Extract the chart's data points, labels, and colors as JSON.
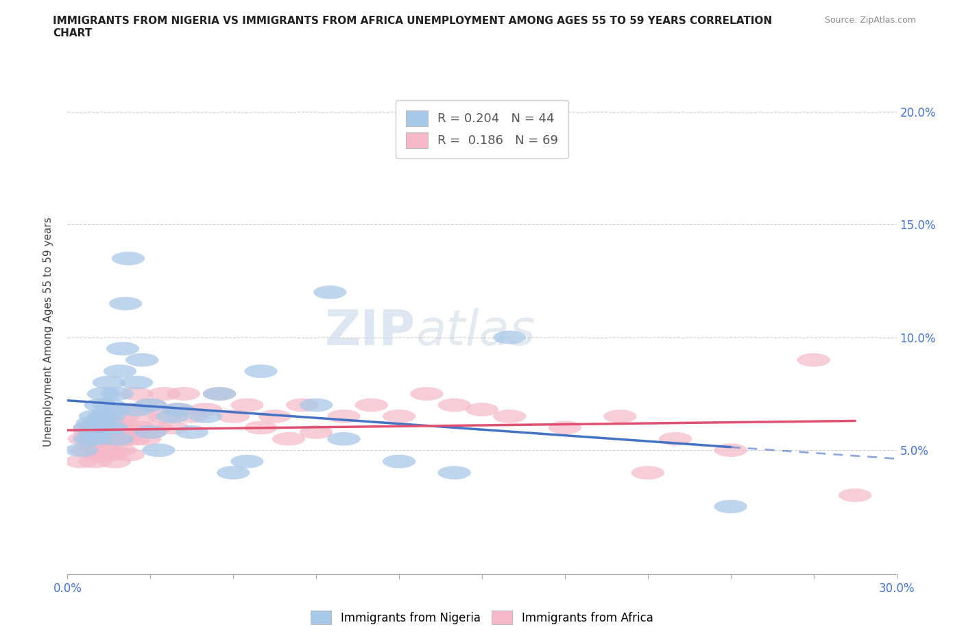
{
  "title": "IMMIGRANTS FROM NIGERIA VS IMMIGRANTS FROM AFRICA UNEMPLOYMENT AMONG AGES 55 TO 59 YEARS CORRELATION\nCHART",
  "source_text": "Source: ZipAtlas.com",
  "ylabel": "Unemployment Among Ages 55 to 59 years",
  "xlim": [
    0.0,
    0.3
  ],
  "ylim": [
    -0.005,
    0.21
  ],
  "xticks": [
    0.0,
    0.03,
    0.06,
    0.09,
    0.12,
    0.15,
    0.18,
    0.21,
    0.24,
    0.27,
    0.3
  ],
  "yticks": [
    0.0,
    0.05,
    0.1,
    0.15,
    0.2
  ],
  "nigeria_color": "#a8c8e8",
  "africa_color": "#f4b8c8",
  "nigeria_line_color": "#4472c4",
  "africa_line_color": "#e05070",
  "nigeria_label": "Immigrants from Nigeria",
  "africa_label": "Immigrants from Africa",
  "r_nigeria": 0.204,
  "n_nigeria": 44,
  "r_africa": 0.186,
  "n_africa": 69,
  "watermark": "ZIPatlas",
  "nigeria_x": [
    0.005,
    0.008,
    0.008,
    0.009,
    0.01,
    0.01,
    0.01,
    0.012,
    0.012,
    0.013,
    0.013,
    0.014,
    0.015,
    0.015,
    0.015,
    0.016,
    0.017,
    0.018,
    0.018,
    0.019,
    0.02,
    0.021,
    0.022,
    0.025,
    0.025,
    0.027,
    0.03,
    0.03,
    0.033,
    0.038,
    0.04,
    0.045,
    0.05,
    0.055,
    0.06,
    0.065,
    0.07,
    0.09,
    0.095,
    0.1,
    0.12,
    0.14,
    0.16,
    0.24
  ],
  "nigeria_y": [
    0.05,
    0.055,
    0.06,
    0.062,
    0.055,
    0.058,
    0.065,
    0.06,
    0.07,
    0.065,
    0.075,
    0.06,
    0.065,
    0.07,
    0.08,
    0.06,
    0.068,
    0.055,
    0.075,
    0.085,
    0.095,
    0.115,
    0.135,
    0.068,
    0.08,
    0.09,
    0.058,
    0.07,
    0.05,
    0.065,
    0.068,
    0.058,
    0.065,
    0.075,
    0.04,
    0.045,
    0.085,
    0.07,
    0.12,
    0.055,
    0.045,
    0.04,
    0.1,
    0.025
  ],
  "africa_x": [
    0.005,
    0.006,
    0.007,
    0.008,
    0.008,
    0.009,
    0.01,
    0.01,
    0.01,
    0.011,
    0.012,
    0.012,
    0.012,
    0.013,
    0.013,
    0.014,
    0.015,
    0.015,
    0.015,
    0.016,
    0.016,
    0.017,
    0.018,
    0.018,
    0.019,
    0.02,
    0.02,
    0.021,
    0.022,
    0.022,
    0.023,
    0.024,
    0.025,
    0.025,
    0.026,
    0.027,
    0.028,
    0.03,
    0.03,
    0.032,
    0.035,
    0.035,
    0.038,
    0.04,
    0.042,
    0.045,
    0.05,
    0.055,
    0.06,
    0.065,
    0.07,
    0.075,
    0.08,
    0.085,
    0.09,
    0.1,
    0.11,
    0.12,
    0.13,
    0.14,
    0.15,
    0.16,
    0.18,
    0.2,
    0.21,
    0.22,
    0.24,
    0.27,
    0.285
  ],
  "africa_y": [
    0.045,
    0.055,
    0.05,
    0.058,
    0.06,
    0.055,
    0.045,
    0.052,
    0.06,
    0.055,
    0.048,
    0.055,
    0.062,
    0.05,
    0.058,
    0.055,
    0.048,
    0.055,
    0.062,
    0.05,
    0.058,
    0.045,
    0.055,
    0.062,
    0.05,
    0.058,
    0.065,
    0.055,
    0.048,
    0.06,
    0.068,
    0.055,
    0.058,
    0.075,
    0.06,
    0.065,
    0.055,
    0.058,
    0.07,
    0.06,
    0.065,
    0.075,
    0.06,
    0.068,
    0.075,
    0.065,
    0.068,
    0.075,
    0.065,
    0.07,
    0.06,
    0.065,
    0.055,
    0.07,
    0.058,
    0.065,
    0.07,
    0.065,
    0.075,
    0.07,
    0.068,
    0.065,
    0.06,
    0.065,
    0.04,
    0.055,
    0.05,
    0.09,
    0.03
  ],
  "background_color": "#ffffff",
  "grid_color": "#d0d0d0"
}
